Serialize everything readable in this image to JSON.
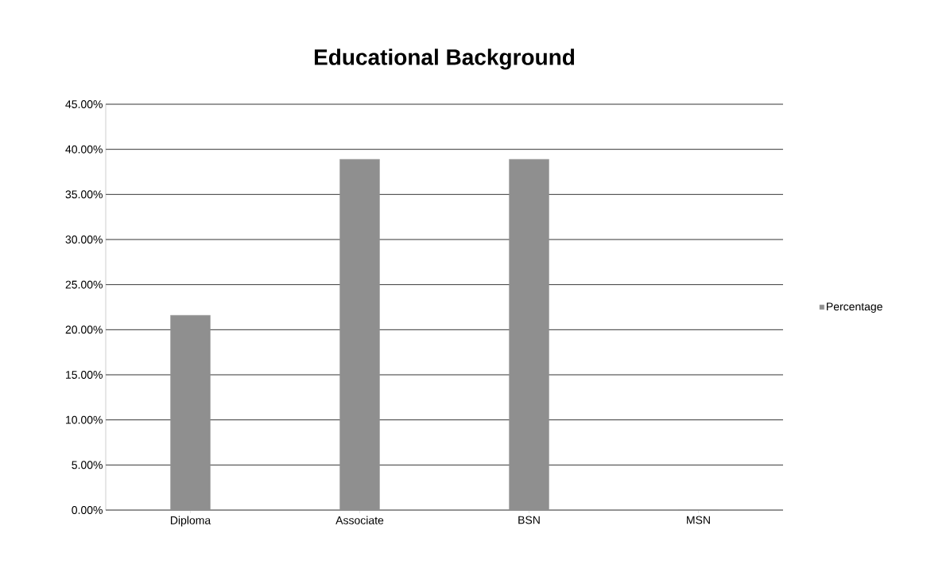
{
  "chart_data": {
    "type": "bar",
    "title": "Educational Background",
    "categories": [
      "Diploma",
      "Associate",
      "BSN",
      "MSN"
    ],
    "series": [
      {
        "name": "Percentage",
        "color": "#8f8f8f",
        "values": [
          21.6,
          38.9,
          38.9,
          0
        ]
      }
    ],
    "ylim": [
      0,
      45
    ],
    "yticks": [
      {
        "value": 0,
        "label": "0.00%"
      },
      {
        "value": 5,
        "label": "5.00%"
      },
      {
        "value": 10,
        "label": "10.00%"
      },
      {
        "value": 15,
        "label": "15.00%"
      },
      {
        "value": 20,
        "label": "20.00%"
      },
      {
        "value": 25,
        "label": "25.00%"
      },
      {
        "value": 30,
        "label": "30.00%"
      },
      {
        "value": 35,
        "label": "35.00%"
      },
      {
        "value": 40,
        "label": "40.00%"
      },
      {
        "value": 45,
        "label": "45.00%"
      }
    ],
    "grid": "y",
    "legend": "right"
  }
}
